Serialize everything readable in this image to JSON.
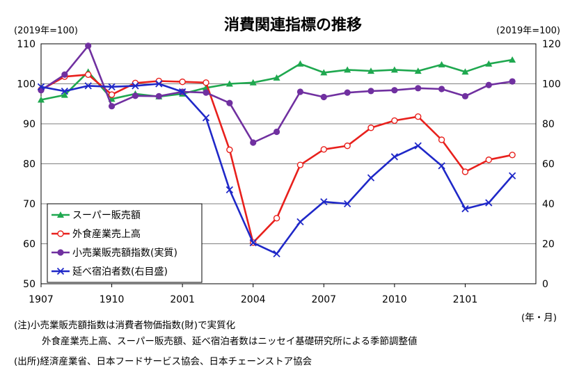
{
  "chart_data": {
    "type": "line",
    "title": "消費関連指標の推移",
    "left_unit": "(2019年=100)",
    "right_unit": "(2019年=100)",
    "xlabel": "(年・月)",
    "x_tick_labels": [
      "1907",
      "1910",
      "2001",
      "2004",
      "2007",
      "2010",
      "2101"
    ],
    "y_left": {
      "min": 50,
      "max": 110,
      "ticks": [
        "50",
        "60",
        "70",
        "80",
        "90",
        "100",
        "110"
      ]
    },
    "y_right": {
      "min": 0,
      "max": 120,
      "ticks": [
        "0",
        "20",
        "40",
        "60",
        "80",
        "100",
        "120"
      ]
    },
    "grid": true,
    "legend_position": "bottom-left",
    "series": [
      {
        "name": "スーパー販売額",
        "axis": "left",
        "color": "#1fa84f",
        "marker": "triangle",
        "values": [
          96.0,
          97.2,
          103.0,
          96.2,
          97.5,
          96.8,
          97.5,
          99.0,
          100.0,
          100.3,
          101.5,
          105.0,
          102.8,
          103.5,
          103.2,
          103.5,
          103.2,
          104.8,
          103.0,
          105.0,
          106.0
        ]
      },
      {
        "name": "外食産業売上高",
        "axis": "left",
        "color": "#e8201c",
        "marker": "circle-open",
        "values": [
          98.5,
          101.8,
          102.3,
          97.3,
          100.2,
          100.7,
          100.5,
          100.3,
          83.5,
          60.3,
          66.4,
          79.7,
          83.6,
          84.5,
          89.0,
          90.8,
          91.8,
          86.0,
          78.0,
          81.0,
          82.2
        ]
      },
      {
        "name": "小売業販売額指数(実質)",
        "axis": "left",
        "color": "#7030a0",
        "marker": "circle",
        "values": [
          98.4,
          102.3,
          109.5,
          94.4,
          97.0,
          96.9,
          98.0,
          97.8,
          95.2,
          85.3,
          88.0,
          98.0,
          96.7,
          97.8,
          98.2,
          98.4,
          98.9,
          98.7,
          96.9,
          99.7,
          100.6
        ]
      },
      {
        "name": "延べ宿泊者数(右目盛)",
        "axis": "right",
        "color": "#1f28c8",
        "marker": "x",
        "values": [
          98.5,
          96.3,
          99.0,
          98.5,
          99.0,
          100.0,
          96.0,
          83.0,
          47.0,
          20.5,
          15.0,
          31.0,
          41.0,
          40.0,
          53.0,
          63.5,
          69.0,
          59.0,
          37.5,
          40.5,
          54.0
        ]
      }
    ]
  },
  "notes": {
    "note_line1": "(注)小売業販売額指数は消費者物価指数(財)で実質化",
    "note_line2": "外食産業売上高、スーパー販売額、延べ宿泊者数はニッセイ基礎研究所による季節調整値",
    "source_line": "(出所)経済産業省、日本フードサービス協会、日本チェーンストア協会"
  }
}
